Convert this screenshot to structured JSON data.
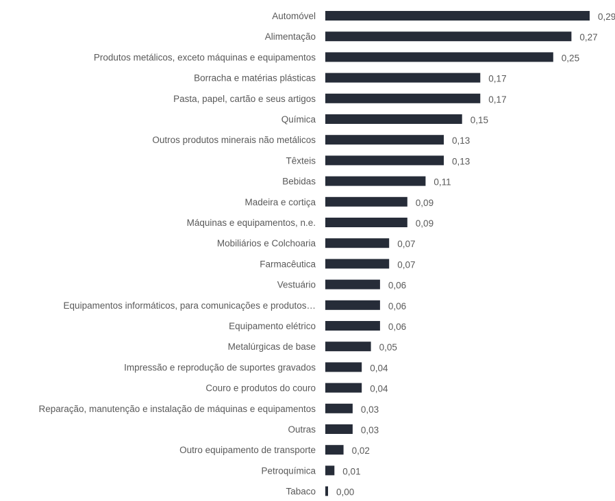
{
  "chart_data": {
    "type": "bar",
    "orientation": "horizontal",
    "categories": [
      "Automóvel",
      "Alimentação",
      "Produtos metálicos, exceto máquinas e equipamentos",
      "Borracha e matérias plásticas",
      "Pasta, papel, cartão e seus artigos",
      "Química",
      "Outros produtos minerais não metálicos",
      "Têxteis",
      "Bebidas",
      "Madeira e cortiça",
      "Máquinas e equipamentos, n.e.",
      "Mobiliários e Colchoaria",
      "Farmacêutica",
      "Vestuário",
      "Equipamentos informáticos, para comunicações e produtos…",
      "Equipamento elétrico",
      "Metalúrgicas de base",
      "Impressão e reprodução de suportes gravados",
      "Couro e produtos do couro",
      "Reparação, manutenção e instalação de máquinas e equipamentos",
      "Outras",
      "Outro equipamento de transporte",
      "Petroquímica",
      "Tabaco"
    ],
    "values": [
      0.29,
      0.27,
      0.25,
      0.17,
      0.17,
      0.15,
      0.13,
      0.13,
      0.11,
      0.09,
      0.09,
      0.07,
      0.07,
      0.06,
      0.06,
      0.06,
      0.05,
      0.04,
      0.04,
      0.03,
      0.03,
      0.02,
      0.01,
      0.0
    ],
    "labels": [
      "0,29",
      "0,27",
      "0,25",
      "0,17",
      "0,17",
      "0,15",
      "0,13",
      "0,13",
      "0,11",
      "0,09",
      "0,09",
      "0,07",
      "0,07",
      "0,06",
      "0,06",
      "0,06",
      "0,05",
      "0,04",
      "0,04",
      "0,03",
      "0,03",
      "0,02",
      "0,01",
      "0,00"
    ],
    "xlim": [
      0,
      0.29
    ],
    "bar_color": "#262c38",
    "label_color": "#595959",
    "grid": false,
    "legend": "none"
  }
}
